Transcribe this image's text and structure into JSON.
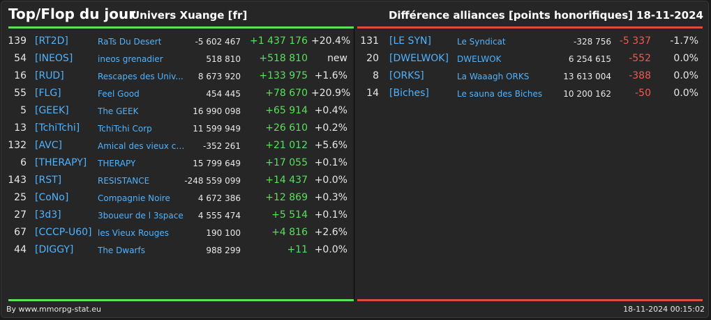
{
  "header": {
    "title": "Top/Flop du jour",
    "universe": "Univers Xuange [fr]",
    "subject": "Différence alliances [points honorifiques]",
    "date": "18-11-2024"
  },
  "colors": {
    "top": "#59e05c",
    "flop": "#df4b43",
    "link": "#4fb3ff",
    "background": "#262626"
  },
  "top": [
    {
      "rank": "139",
      "tag": "[RT2D]",
      "name": "RaTs Du Desert",
      "total": "-5 602 467",
      "diff": "+1 437 176",
      "pct": "+20.4%"
    },
    {
      "rank": "54",
      "tag": "[INEOS]",
      "name": "ineos grenadier",
      "total": "518 810",
      "diff": "+518 810",
      "pct": "new"
    },
    {
      "rank": "16",
      "tag": "[RUD]",
      "name": "Rescapes des Univ...",
      "total": "8 673 920",
      "diff": "+133 975",
      "pct": "+1.6%"
    },
    {
      "rank": "55",
      "tag": "[FLG]",
      "name": "Feel Good",
      "total": "454 445",
      "diff": "+78 670",
      "pct": "+20.9%"
    },
    {
      "rank": "5",
      "tag": "[GEEK]",
      "name": "The GEEK",
      "total": "16 990 098",
      "diff": "+65 914",
      "pct": "+0.4%"
    },
    {
      "rank": "13",
      "tag": "[TchiTchi]",
      "name": "TchiTchi Corp",
      "total": "11 599 949",
      "diff": "+26 610",
      "pct": "+0.2%"
    },
    {
      "rank": "132",
      "tag": "[AVC]",
      "name": "Amical des vieux co...",
      "total": "-352 261",
      "diff": "+21 012",
      "pct": "+5.6%"
    },
    {
      "rank": "6",
      "tag": "[THERAPY]",
      "name": "THERAPY",
      "total": "15 799 649",
      "diff": "+17 055",
      "pct": "+0.1%"
    },
    {
      "rank": "143",
      "tag": "[RST]",
      "name": "RESISTANCE",
      "total": "-248 559 099",
      "diff": "+14 437",
      "pct": "+0.0%"
    },
    {
      "rank": "25",
      "tag": "[CoNo]",
      "name": "Compagnie Noire",
      "total": "4 672 386",
      "diff": "+12 869",
      "pct": "+0.3%"
    },
    {
      "rank": "27",
      "tag": "[3d3]",
      "name": "3boueur de l 3space",
      "total": "4 555 474",
      "diff": "+5 514",
      "pct": "+0.1%"
    },
    {
      "rank": "67",
      "tag": "[CCCP-U60]",
      "name": "les Vieux Rouges",
      "total": "190 100",
      "diff": "+4 816",
      "pct": "+2.6%"
    },
    {
      "rank": "44",
      "tag": "[DIGGY]",
      "name": "The Dwarfs",
      "total": "988 299",
      "diff": "+11",
      "pct": "+0.0%"
    }
  ],
  "flop": [
    {
      "rank": "131",
      "tag": "[LE SYN]",
      "name": "Le Syndicat",
      "total": "-328 756",
      "diff": "-5 337",
      "pct": "-1.7%"
    },
    {
      "rank": "20",
      "tag": "[DWELWOK]",
      "name": "DWELWOK",
      "total": "6 254 615",
      "diff": "-552",
      "pct": "0.0%"
    },
    {
      "rank": "8",
      "tag": "[ORKS]",
      "name": "La Waaagh ORKS",
      "total": "13 613 004",
      "diff": "-388",
      "pct": "0.0%"
    },
    {
      "rank": "14",
      "tag": "[Biches]",
      "name": "Le sauna des Biches",
      "total": "10 200 162",
      "diff": "-50",
      "pct": "0.0%"
    }
  ],
  "footer": {
    "credit": "By www.mmorpg-stat.eu",
    "timestamp": "18-11-2024 00:15:02"
  }
}
